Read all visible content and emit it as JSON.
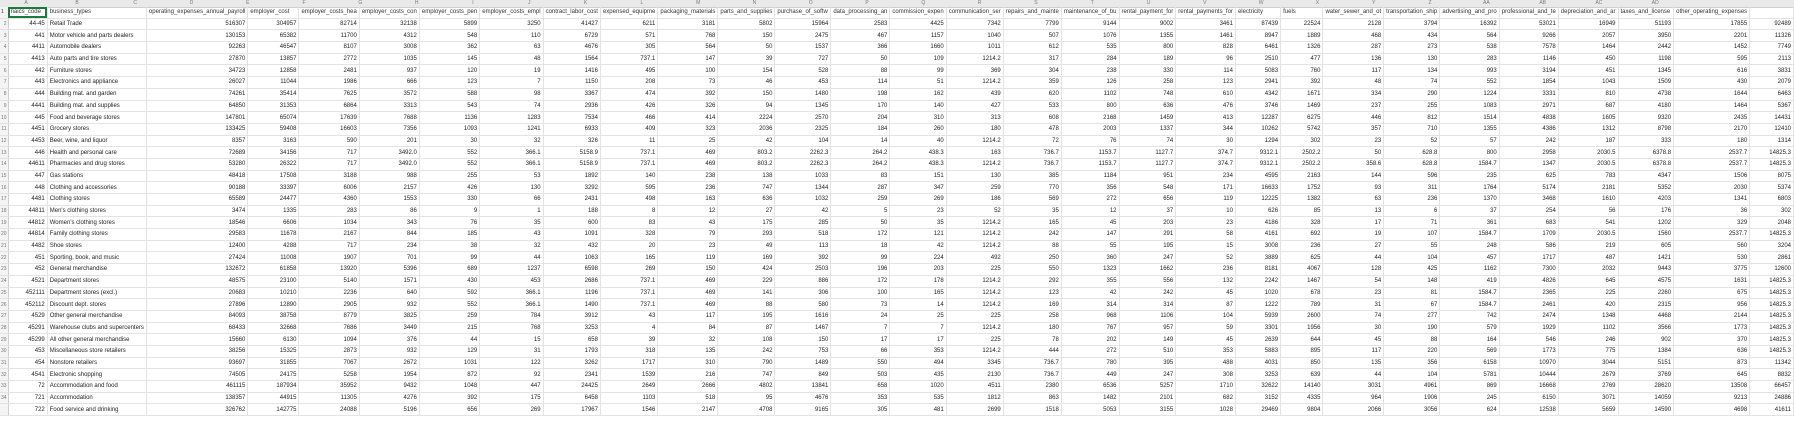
{
  "colors": {
    "selection": "#1b7b3c",
    "header_bg": "#e9e9e9",
    "grid": "#e3e3e3"
  },
  "sheet": {
    "column_letters": [
      "A",
      "B",
      "C",
      "D",
      "E",
      "F",
      "G",
      "H",
      "I",
      "J",
      "K",
      "L",
      "M",
      "N",
      "O",
      "P",
      "Q",
      "R",
      "S",
      "T",
      "U",
      "V",
      "W",
      "X",
      "Y",
      "Z",
      "AA",
      "AB",
      "AC",
      "AD"
    ],
    "headers": [
      "naics_code",
      "business_types",
      "operating_expenses_annual_payroll",
      "employer_cost",
      "employer_costs_hea",
      "employer_costs_con",
      "employer_costs_pen",
      "employer_costs_empl",
      "contract_labor_cost",
      "expensed_equipme",
      "packaging_materials",
      "parts_and_supplies",
      "purchase_of_softw",
      "data_processing_an",
      "commission_expen",
      "communication_ser",
      "repairs_and_mainte",
      "maintenance_of_bu",
      "rental_payment_for",
      "rental_payments_for",
      "electricity",
      "fuels",
      "water_sewer_and_ot",
      "transportation_ship",
      "advertising_and_pro",
      "professional_and_te",
      "depreciation_and_ar",
      "taxes_and_license",
      "other_operating_expenses",
      ""
    ],
    "row_numbers": [
      "1",
      "2",
      "3",
      "4",
      "5",
      "6",
      "7",
      "8",
      "9",
      "10",
      "11",
      "12",
      "13",
      "14",
      "15",
      "16",
      "17",
      "18",
      "19",
      "20",
      "21",
      "22",
      "23",
      "24",
      "25",
      "26",
      "27",
      "28",
      "29",
      "30",
      "31",
      "32",
      "33",
      "34"
    ],
    "rows": [
      [
        "44-45",
        "Retail Trade",
        "516307",
        "304957",
        "82714",
        "32138",
        "5899",
        "3250",
        "41427",
        "6211",
        "3181",
        "5802",
        "15964",
        "2583",
        "4425",
        "7342",
        "7799",
        "9144",
        "9002",
        "3461",
        "87439",
        "22524",
        "2128",
        "3794",
        "16392",
        "53021",
        "16949",
        "51193",
        "17855",
        "92489"
      ],
      [
        "441",
        "Motor vehicle and parts dealers",
        "130153",
        "65382",
        "11700",
        "4312",
        "548",
        "110",
        "6729",
        "571",
        "768",
        "150",
        "2475",
        "467",
        "1157",
        "1040",
        "507",
        "1076",
        "1355",
        "1461",
        "8947",
        "1889",
        "468",
        "434",
        "564",
        "9266",
        "2057",
        "3950",
        "2201",
        "11326"
      ],
      [
        "4411",
        "Automobile dealers",
        "92263",
        "46547",
        "8107",
        "3008",
        "362",
        "63",
        "4676",
        "305",
        "564",
        "50",
        "1537",
        "366",
        "1660",
        "1011",
        "612",
        "535",
        "800",
        "828",
        "6461",
        "1326",
        "287",
        "273",
        "538",
        "7578",
        "1464",
        "2442",
        "1452",
        "7749"
      ],
      [
        "4413",
        "Auto parts and tire stores",
        "27870",
        "13857",
        "2772",
        "1035",
        "145",
        "48",
        "1564",
        "737.1",
        "147",
        "39",
        "727",
        "50",
        "109",
        "1214.2",
        "317",
        "284",
        "189",
        "96",
        "2510",
        "477",
        "136",
        "130",
        "283",
        "1146",
        "450",
        "1198",
        "595",
        "2113"
      ],
      [
        "442",
        "Furniture stores",
        "34723",
        "12858",
        "2481",
        "937",
        "120",
        "19",
        "1416",
        "495",
        "100",
        "154",
        "528",
        "88",
        "99",
        "369",
        "304",
        "238",
        "330",
        "114",
        "5083",
        "760",
        "117",
        "134",
        "993",
        "3194",
        "451",
        "1345",
        "616",
        "3831"
      ],
      [
        "443",
        "Electronics and appliance",
        "26027",
        "11044",
        "1986",
        "666",
        "123",
        "7",
        "1150",
        "208",
        "73",
        "46",
        "453",
        "114",
        "51",
        "1214.2",
        "359",
        "126",
        "258",
        "123",
        "2941",
        "392",
        "48",
        "74",
        "552",
        "1854",
        "1043",
        "1509",
        "430",
        "2079"
      ],
      [
        "444",
        "Building mat. and garden",
        "74261",
        "35414",
        "7625",
        "3572",
        "588",
        "98",
        "3367",
        "474",
        "392",
        "150",
        "1480",
        "198",
        "162",
        "439",
        "620",
        "1102",
        "748",
        "610",
        "4342",
        "1671",
        "334",
        "290",
        "1224",
        "3331",
        "810",
        "4738",
        "1644",
        "6463"
      ],
      [
        "4441",
        "Building mat. and supplies",
        "64850",
        "31353",
        "6864",
        "3313",
        "543",
        "74",
        "2936",
        "426",
        "326",
        "94",
        "1345",
        "170",
        "140",
        "427",
        "533",
        "800",
        "636",
        "476",
        "3746",
        "1469",
        "237",
        "255",
        "1083",
        "2971",
        "687",
        "4180",
        "1464",
        "5367"
      ],
      [
        "445",
        "Food and beverage stores",
        "147801",
        "65074",
        "17639",
        "7688",
        "1136",
        "1283",
        "7534",
        "466",
        "414",
        "2224",
        "2570",
        "204",
        "310",
        "313",
        "608",
        "2168",
        "1459",
        "413",
        "12287",
        "6275",
        "446",
        "812",
        "1514",
        "4838",
        "1605",
        "9320",
        "2435",
        "14431"
      ],
      [
        "4451",
        "Grocery stores",
        "133425",
        "59408",
        "16603",
        "7356",
        "1093",
        "1241",
        "6933",
        "409",
        "323",
        "2036",
        "2325",
        "184",
        "260",
        "180",
        "478",
        "2003",
        "1337",
        "344",
        "10262",
        "5742",
        "357",
        "710",
        "1355",
        "4386",
        "1312",
        "8798",
        "2170",
        "12410"
      ],
      [
        "4453",
        "Beer, wine, and liquor",
        "8357",
        "3163",
        "590",
        "201",
        "30",
        "32",
        "326",
        "11",
        "25",
        "42",
        "104",
        "14",
        "40",
        "1214.2",
        "72",
        "76",
        "74",
        "30",
        "1294",
        "302",
        "23",
        "52",
        "57",
        "242",
        "187",
        "333",
        "180",
        "1314"
      ],
      [
        "446",
        "Health and personal care",
        "72689",
        "34156",
        "717",
        "3492.0",
        "552",
        "366.1",
        "5158.9",
        "737.1",
        "469",
        "803.2",
        "2262.3",
        "264.2",
        "438.3",
        "163",
        "736.7",
        "1153.7",
        "1127.7",
        "374.7",
        "9312.1",
        "2502.2",
        "50",
        "628.8",
        "800",
        "2958",
        "2030.5",
        "6378.8",
        "2537.7",
        "14825.3"
      ],
      [
        "44611",
        "Pharmacies and drug stores",
        "53280",
        "26322",
        "717",
        "3492.0",
        "552",
        "366.1",
        "5158.9",
        "737.1",
        "469",
        "803.2",
        "2262.3",
        "264.2",
        "438.3",
        "1214.2",
        "736.7",
        "1153.7",
        "1127.7",
        "374.7",
        "9312.1",
        "2502.2",
        "358.6",
        "628.8",
        "1584.7",
        "1347",
        "2030.5",
        "6378.8",
        "2537.7",
        "14825.3"
      ],
      [
        "447",
        "Gas stations",
        "48418",
        "17508",
        "3188",
        "988",
        "255",
        "53",
        "1892",
        "140",
        "238",
        "138",
        "1033",
        "83",
        "151",
        "130",
        "385",
        "1184",
        "951",
        "234",
        "4595",
        "2163",
        "144",
        "596",
        "235",
        "625",
        "783",
        "4347",
        "1506",
        "8075"
      ],
      [
        "448",
        "Clothing and accessories",
        "90188",
        "33397",
        "6006",
        "2157",
        "426",
        "130",
        "3292",
        "595",
        "236",
        "747",
        "1344",
        "287",
        "347",
        "259",
        "770",
        "356",
        "548",
        "171",
        "16633",
        "1752",
        "93",
        "311",
        "1764",
        "5174",
        "2181",
        "5352",
        "2030",
        "5374"
      ],
      [
        "4481",
        "Clothing stores",
        "65589",
        "24477",
        "4360",
        "1553",
        "330",
        "66",
        "2431",
        "498",
        "163",
        "636",
        "1032",
        "259",
        "269",
        "186",
        "569",
        "272",
        "656",
        "119",
        "12225",
        "1382",
        "63",
        "236",
        "1370",
        "3468",
        "1610",
        "4203",
        "1341",
        "6803"
      ],
      [
        "44811",
        "Men's clothing stores",
        "3474",
        "1335",
        "283",
        "86",
        "9",
        "1",
        "188",
        "8",
        "12",
        "27",
        "42",
        "5",
        "23",
        "52",
        "35",
        "12",
        "37",
        "10",
        "626",
        "85",
        "13",
        "6",
        "37",
        "254",
        "56",
        "176",
        "36",
        "302"
      ],
      [
        "44812",
        "Women's clothing stores",
        "18546",
        "6606",
        "1034",
        "343",
        "76",
        "35",
        "600",
        "83",
        "43",
        "175",
        "285",
        "50",
        "35",
        "1214.2",
        "165",
        "45",
        "203",
        "23",
        "4186",
        "328",
        "17",
        "71",
        "361",
        "683",
        "541",
        "1202",
        "329",
        "2048"
      ],
      [
        "44814",
        "Family clothing stores",
        "29583",
        "11678",
        "2167",
        "844",
        "185",
        "43",
        "1091",
        "328",
        "79",
        "293",
        "518",
        "172",
        "121",
        "1214.2",
        "242",
        "147",
        "291",
        "58",
        "4161",
        "692",
        "19",
        "107",
        "1584.7",
        "1709",
        "2030.5",
        "1560",
        "2537.7",
        "14825.3"
      ],
      [
        "4482",
        "Shoe stores",
        "12400",
        "4288",
        "717",
        "234",
        "38",
        "32",
        "432",
        "20",
        "23",
        "49",
        "113",
        "18",
        "42",
        "1214.2",
        "88",
        "55",
        "195",
        "15",
        "3008",
        "236",
        "27",
        "55",
        "248",
        "586",
        "219",
        "605",
        "560",
        "3204"
      ],
      [
        "451",
        "Sporting, book, and music",
        "27424",
        "11008",
        "1907",
        "701",
        "99",
        "44",
        "1063",
        "165",
        "119",
        "169",
        "392",
        "99",
        "224",
        "492",
        "250",
        "360",
        "247",
        "52",
        "3889",
        "625",
        "44",
        "104",
        "457",
        "1717",
        "487",
        "1421",
        "530",
        "2861"
      ],
      [
        "452",
        "General merchandise",
        "132672",
        "61858",
        "13920",
        "5396",
        "689",
        "1237",
        "6598",
        "269",
        "150",
        "424",
        "2503",
        "196",
        "203",
        "225",
        "550",
        "1323",
        "1662",
        "236",
        "8181",
        "4067",
        "128",
        "425",
        "1162",
        "7300",
        "2032",
        "9443",
        "3775",
        "12600"
      ],
      [
        "4521",
        "Department stores",
        "48575",
        "23100",
        "5140",
        "1571",
        "430",
        "453",
        "2686",
        "737.1",
        "469",
        "229",
        "886",
        "172",
        "178",
        "1214.2",
        "292",
        "355",
        "556",
        "132",
        "2242",
        "1467",
        "54",
        "148",
        "419",
        "4826",
        "645",
        "4575",
        "1631",
        "14825.3"
      ],
      [
        "452111",
        "Department stores (excl.)",
        "20683",
        "10210",
        "2236",
        "640",
        "592",
        "366.1",
        "1196",
        "737.1",
        "469",
        "141",
        "306",
        "100",
        "165",
        "1214.2",
        "123",
        "42",
        "242",
        "45",
        "1020",
        "678",
        "23",
        "81",
        "1584.7",
        "2365",
        "225",
        "2260",
        "675",
        "14825.3"
      ],
      [
        "452112",
        "Discount dept. stores",
        "27896",
        "12890",
        "2905",
        "932",
        "552",
        "366.1",
        "1490",
        "737.1",
        "469",
        "88",
        "580",
        "73",
        "14",
        "1214.2",
        "169",
        "314",
        "314",
        "87",
        "1222",
        "789",
        "31",
        "67",
        "1584.7",
        "2461",
        "420",
        "2315",
        "956",
        "14825.3"
      ],
      [
        "4529",
        "Other general merchandise",
        "84093",
        "38758",
        "8779",
        "3825",
        "259",
        "784",
        "3912",
        "43",
        "117",
        "195",
        "1616",
        "24",
        "25",
        "225",
        "258",
        "968",
        "1106",
        "104",
        "5939",
        "2600",
        "74",
        "277",
        "742",
        "2474",
        "1348",
        "4468",
        "2144",
        "14825.3"
      ],
      [
        "45291",
        "Warehouse clubs and supercenters",
        "68433",
        "32668",
        "7686",
        "3449",
        "215",
        "768",
        "3253",
        "4",
        "84",
        "87",
        "1467",
        "7",
        "7",
        "1214.2",
        "180",
        "767",
        "957",
        "59",
        "3301",
        "1956",
        "30",
        "190",
        "579",
        "1929",
        "1102",
        "3566",
        "1773",
        "14825.3"
      ],
      [
        "45299",
        "All other general merchandise",
        "15660",
        "6130",
        "1094",
        "376",
        "44",
        "15",
        "658",
        "39",
        "32",
        "108",
        "150",
        "17",
        "17",
        "225",
        "78",
        "202",
        "149",
        "45",
        "2639",
        "644",
        "45",
        "88",
        "164",
        "546",
        "246",
        "902",
        "370",
        "14825.3"
      ],
      [
        "453",
        "Miscellaneous store retailers",
        "38256",
        "15325",
        "2873",
        "932",
        "129",
        "31",
        "1793",
        "318",
        "135",
        "242",
        "753",
        "66",
        "353",
        "1214.2",
        "444",
        "272",
        "510",
        "353",
        "5883",
        "895",
        "117",
        "220",
        "569",
        "1773",
        "775",
        "1384",
        "636",
        "14825.3"
      ],
      [
        "454",
        "Nonstore retailers",
        "93697",
        "31855",
        "7067",
        "2672",
        "1031",
        "122",
        "3262",
        "1717",
        "310",
        "790",
        "1489",
        "550",
        "494",
        "3345",
        "736.7",
        "780",
        "395",
        "488",
        "4031",
        "850",
        "135",
        "356",
        "6158",
        "10970",
        "3044",
        "5151",
        "873",
        "11342"
      ],
      [
        "4541",
        "Electronic shopping",
        "74505",
        "24175",
        "5258",
        "1954",
        "872",
        "92",
        "2341",
        "1539",
        "216",
        "747",
        "849",
        "503",
        "435",
        "2130",
        "736.7",
        "449",
        "247",
        "308",
        "3253",
        "639",
        "44",
        "104",
        "5781",
        "10444",
        "2679",
        "3769",
        "645",
        "8832"
      ],
      [
        "72",
        "Accommodation and food",
        "461115",
        "187934",
        "35952",
        "9432",
        "1048",
        "447",
        "24425",
        "2649",
        "2666",
        "4802",
        "13841",
        "658",
        "1020",
        "4511",
        "2380",
        "6536",
        "5257",
        "1710",
        "32622",
        "14140",
        "3031",
        "4961",
        "869",
        "16668",
        "2769",
        "28620",
        "13508",
        "66457"
      ],
      [
        "721",
        "Accommodation",
        "138357",
        "44915",
        "11305",
        "4276",
        "392",
        "175",
        "6458",
        "1103",
        "518",
        "95",
        "4676",
        "353",
        "535",
        "1812",
        "863",
        "1482",
        "2101",
        "682",
        "3152",
        "4335",
        "964",
        "1906",
        "245",
        "6150",
        "3071",
        "14059",
        "9213",
        "24886"
      ],
      [
        "722",
        "Food service and drinking",
        "326762",
        "142775",
        "24088",
        "5196",
        "656",
        "269",
        "17967",
        "1546",
        "2147",
        "4708",
        "9165",
        "305",
        "481",
        "2699",
        "1518",
        "5053",
        "3155",
        "1028",
        "29469",
        "9804",
        "2066",
        "3056",
        "624",
        "12538",
        "5659",
        "14590",
        "4698",
        "41611"
      ]
    ]
  }
}
